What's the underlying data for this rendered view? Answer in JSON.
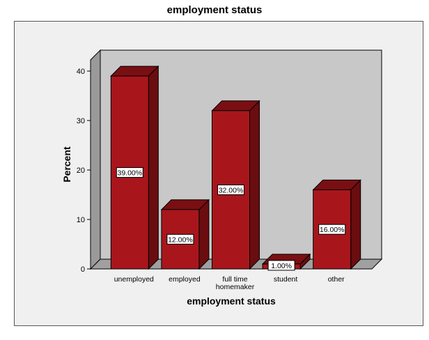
{
  "chart_data": {
    "type": "bar",
    "title": "employment status",
    "xlabel": "employment status",
    "ylabel": "Percent",
    "categories": [
      "unemployed",
      "employed",
      "full time homemaker",
      "student",
      "other"
    ],
    "category_labels": [
      [
        "unemployed"
      ],
      [
        "employed"
      ],
      [
        "full time",
        "homemaker"
      ],
      [
        "student"
      ],
      [
        "other"
      ]
    ],
    "values": [
      39,
      12,
      32,
      1,
      16
    ],
    "data_labels": [
      "39.00%",
      "12.00%",
      "32.00%",
      "1.00%",
      "16.00%"
    ],
    "ylim": [
      0,
      40
    ],
    "yticks": [
      0,
      10,
      20,
      30,
      40
    ],
    "grid": false,
    "style": "3d-bar",
    "colors": {
      "bar_front": "#a8161c",
      "bar_side": "#6a0d10",
      "bar_top": "#7a0f13",
      "wall_back": "#c8c8c8",
      "wall_side": "#9a9a9a",
      "floor": "#a0a0a0",
      "frame_bg": "#f0f0f0"
    }
  }
}
